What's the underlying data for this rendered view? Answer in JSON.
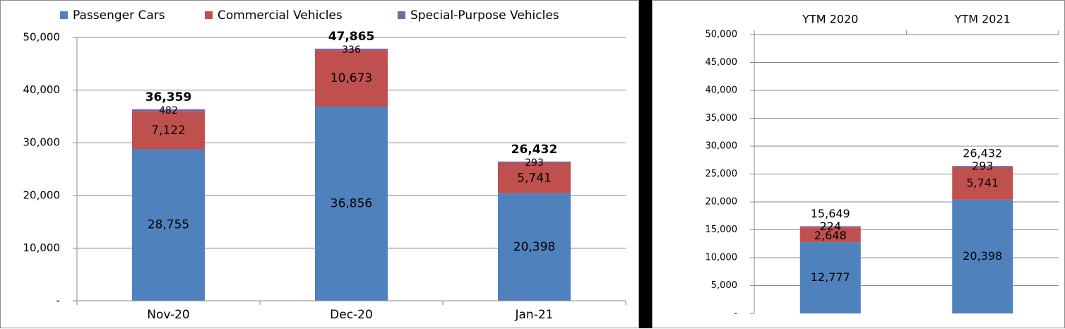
{
  "legend": [
    {
      "label": "Passenger Cars",
      "color": "#4f81bd"
    },
    {
      "label": "Commercial Vehicles",
      "color": "#c0504d"
    },
    {
      "label": "Special-Purpose Vehicles",
      "color": "#8064a2"
    }
  ],
  "chart_data": [
    {
      "type": "bar",
      "stacked": true,
      "categories": [
        "Nov-20",
        "Dec-20",
        "Jan-21"
      ],
      "series": [
        {
          "name": "Passenger Cars",
          "values": [
            28755,
            36856,
            20398
          ]
        },
        {
          "name": "Commercial Vehicles",
          "values": [
            7122,
            10673,
            5741
          ]
        },
        {
          "name": "Special-Purpose Vehicles",
          "values": [
            482,
            336,
            293
          ]
        }
      ],
      "totals": [
        36359,
        47865,
        26432
      ],
      "data_labels": {
        "Passenger Cars": [
          "28,755",
          "36,856",
          "20,398"
        ],
        "Commercial Vehicles": [
          "7,122",
          "10,673",
          "5,741"
        ],
        "Special-Purpose Vehicles": [
          "482",
          "336",
          "293"
        ],
        "totals": [
          "36,359",
          "47,865",
          "26,432"
        ]
      },
      "ylim": [
        0,
        50000
      ],
      "y_ticks": [
        "-",
        "10,000",
        "20,000",
        "30,000",
        "40,000",
        "50,000"
      ],
      "legend_position": "top",
      "grid": true
    },
    {
      "type": "bar",
      "stacked": true,
      "categories": [
        "YTM 2020",
        "YTM 2021"
      ],
      "series": [
        {
          "name": "Passenger Cars",
          "values": [
            12777,
            20398
          ]
        },
        {
          "name": "Commercial Vehicles",
          "values": [
            2648,
            5741
          ]
        },
        {
          "name": "Special-Purpose Vehicles",
          "values": [
            224,
            293
          ]
        }
      ],
      "totals": [
        15649,
        26432
      ],
      "data_labels": {
        "Passenger Cars": [
          "12,777",
          "20,398"
        ],
        "Commercial Vehicles": [
          "2,648",
          "5,741"
        ],
        "Special-Purpose Vehicles": [
          "224",
          "293"
        ],
        "totals": [
          "15,649",
          "26,432"
        ]
      },
      "ylim": [
        0,
        50000
      ],
      "y_ticks": [
        "-",
        "5,000",
        "10,000",
        "15,000",
        "20,000",
        "25,000",
        "30,000",
        "35,000",
        "40,000",
        "45,000",
        "50,000"
      ],
      "category_axis_position": "top",
      "grid": true
    }
  ]
}
